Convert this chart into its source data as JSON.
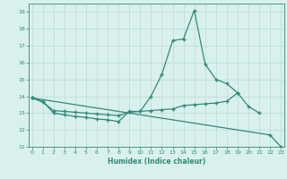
{
  "line1_x": [
    0,
    1,
    2,
    3,
    4,
    5,
    6,
    7,
    8,
    9,
    10,
    11,
    12,
    13,
    14,
    15,
    16,
    17,
    18,
    19
  ],
  "line1_y": [
    13.9,
    13.7,
    13.0,
    12.9,
    12.8,
    12.75,
    12.65,
    12.6,
    12.5,
    13.1,
    13.1,
    14.0,
    15.3,
    17.3,
    17.4,
    19.1,
    15.9,
    15.0,
    14.75,
    14.2
  ],
  "line2_x": [
    0,
    1,
    2,
    3,
    4,
    5,
    6,
    7,
    8,
    9,
    10,
    11,
    12,
    13,
    14,
    15,
    16,
    17,
    18,
    19,
    20,
    21
  ],
  "line2_y": [
    13.9,
    13.65,
    13.15,
    13.1,
    13.05,
    13.0,
    12.95,
    12.9,
    12.85,
    13.05,
    13.1,
    13.15,
    13.2,
    13.25,
    13.45,
    13.5,
    13.55,
    13.6,
    13.7,
    14.2,
    13.4,
    13.0
  ],
  "line3_x": [
    0,
    22,
    23
  ],
  "line3_y": [
    13.9,
    11.7,
    11.0
  ],
  "ylim": [
    11,
    19.5
  ],
  "xlim": [
    -0.3,
    23.3
  ],
  "yticks": [
    11,
    12,
    13,
    14,
    15,
    16,
    17,
    18,
    19
  ],
  "xticks": [
    0,
    1,
    2,
    3,
    4,
    5,
    6,
    7,
    8,
    9,
    10,
    11,
    12,
    13,
    14,
    15,
    16,
    17,
    18,
    19,
    20,
    21,
    22,
    23
  ],
  "xlabel": "Humidex (Indice chaleur)",
  "line_color": "#2e8b74",
  "bg_color": "#daf0ee",
  "grid_color": "#b8dbd8"
}
